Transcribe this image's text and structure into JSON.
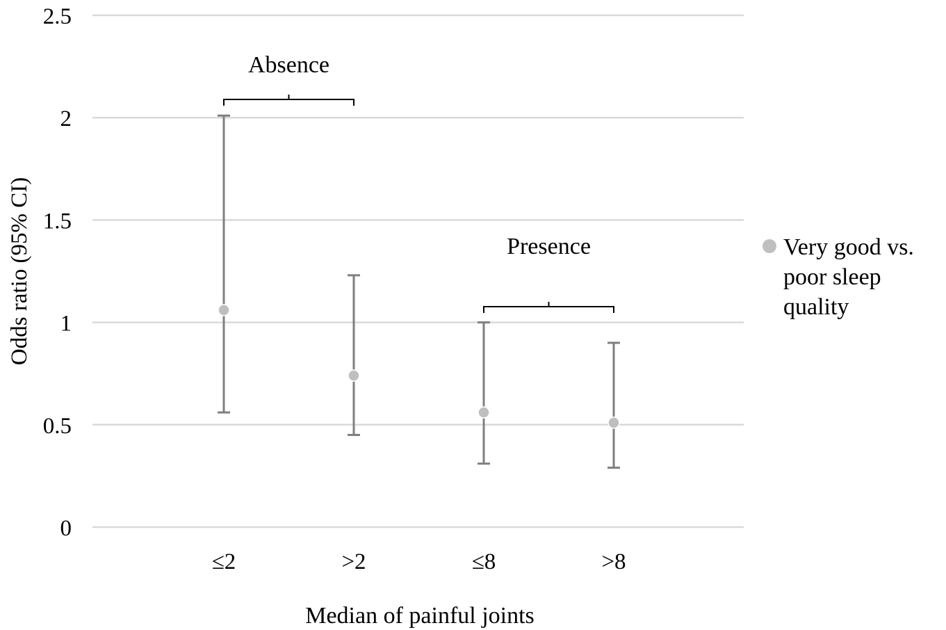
{
  "chart_data": {
    "type": "scatter",
    "subtype": "point-with-error-bars",
    "title": "",
    "xlabel": "Median of painful joints",
    "ylabel": "Odds ratio (95% CI)",
    "ylim": [
      0,
      2.5
    ],
    "yticks": [
      0,
      0.5,
      1,
      1.5,
      2,
      2.5
    ],
    "ytick_labels": [
      "0",
      "0.5",
      "1",
      "1.5",
      "2",
      "2.5"
    ],
    "grid": true,
    "legend_position": "right",
    "categories": [
      "≤2",
      ">2",
      "≤8",
      ">8"
    ],
    "series": [
      {
        "name": "Very good vs. poor sleep quality",
        "color": "#bfbfbf",
        "error_bar_color": "#7f7f7f",
        "values": [
          1.06,
          0.74,
          0.56,
          0.51
        ],
        "ci_lower": [
          0.56,
          0.45,
          0.31,
          0.29
        ],
        "ci_upper": [
          2.01,
          1.23,
          1.0,
          0.9
        ]
      }
    ],
    "annotations": [
      {
        "text": "Absence",
        "categories": [
          "≤2",
          ">2"
        ]
      },
      {
        "text": "Presence",
        "categories": [
          "≤8",
          ">8"
        ]
      }
    ],
    "legend_lines": [
      "Very good vs.",
      "poor sleep",
      "quality"
    ],
    "colors": {
      "grid": "#d9d9d9",
      "marker": "#bfbfbf",
      "error_bar": "#7f7f7f",
      "text": "#000000"
    }
  }
}
